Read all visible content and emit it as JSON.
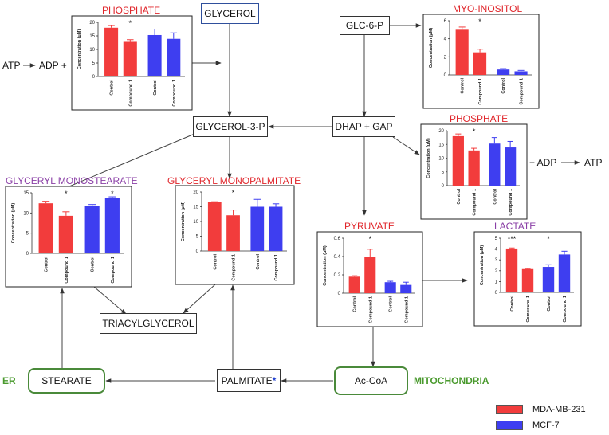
{
  "colors": {
    "red": "#f23c3c",
    "blue": "#3e3ef0",
    "green": "#4a9a2e",
    "purple": "#8a3fa6",
    "title_red": "#e0262b"
  },
  "nodes": {
    "glycerol": "GLYCEROL",
    "glc6p": "GLC-6-P",
    "glycerol3p": "GLYCEROL-3-P",
    "dhap": "DHAP + GAP",
    "triacylglycerol": "TRIACYLGLYCEROL",
    "stearate": "STEARATE",
    "palmitate": "PALMITATE",
    "palmitate_mark": "*",
    "acoa": "Ac-CoA"
  },
  "side_labels": {
    "atp_left": "ATP",
    "adp_left": "ADP +",
    "adp_right": "+ ADP",
    "atp_right": "ATP",
    "er": "ER",
    "mitochondria": "MITOCHONDRIA"
  },
  "legend": [
    {
      "label": "MDA-MB-231",
      "color": "#f23c3c"
    },
    {
      "label": "MCF-7",
      "color": "#3e3ef0"
    }
  ],
  "chart_data": [
    {
      "id": "phosphate_left",
      "title": "PHOSPHATE",
      "title_color": "#e0262b",
      "type": "bar",
      "ylabel": "Concentration (μM)",
      "ylim": [
        0,
        20
      ],
      "yticks": [
        0,
        5,
        10,
        15,
        20
      ],
      "categories": [
        "Control",
        "Compound 1",
        "Control",
        "Compound 1"
      ],
      "values": [
        18,
        12.8,
        15.3,
        13.9
      ],
      "errors": [
        0.8,
        0.8,
        2.2,
        2.2
      ],
      "significance": [
        "",
        "*",
        "",
        ""
      ]
    },
    {
      "id": "myo_inositol",
      "title": "MYO-INOSITOL",
      "title_color": "#e0262b",
      "type": "bar",
      "ylabel": "Concentration (μM)",
      "ylim": [
        0,
        6
      ],
      "yticks": [
        0,
        2,
        4,
        6
      ],
      "categories": [
        "Control",
        "Compound 1",
        "Control",
        "Compound 1"
      ],
      "values": [
        5.0,
        2.5,
        0.6,
        0.4
      ],
      "errors": [
        0.3,
        0.35,
        0.1,
        0.1
      ],
      "significance": [
        "",
        "*",
        "",
        ""
      ]
    },
    {
      "id": "phosphate_right",
      "title": "PHOSPHATE",
      "title_color": "#e0262b",
      "type": "bar",
      "ylabel": "Concentration (μM)",
      "ylim": [
        0,
        20
      ],
      "yticks": [
        0,
        5,
        10,
        15,
        20
      ],
      "categories": [
        "Control",
        "Compound 1",
        "Control",
        "Compound 1"
      ],
      "values": [
        18,
        12.8,
        15.3,
        13.9
      ],
      "errors": [
        0.8,
        0.8,
        2.2,
        2.2
      ],
      "significance": [
        "",
        "*",
        "",
        ""
      ]
    },
    {
      "id": "glyceryl_monostearate",
      "title": "GLYCERYL MONOSTEARATE",
      "title_color": "#8a3fa6",
      "type": "bar",
      "ylabel": "Concentration (μM)",
      "ylim": [
        0,
        15
      ],
      "yticks": [
        0,
        5,
        10,
        15
      ],
      "categories": [
        "Control",
        "Compound 1",
        "Control",
        "Compound 1"
      ],
      "values": [
        12.4,
        9.3,
        11.7,
        13.8
      ],
      "errors": [
        0.5,
        1.0,
        0.4,
        0.2
      ],
      "significance": [
        "",
        "*",
        "",
        "*"
      ]
    },
    {
      "id": "glyceryl_monopalmitate",
      "title": "GLYCERYL MONOPALMITATE",
      "title_color": "#e0262b",
      "type": "bar",
      "ylabel": "Concentration (μM)",
      "ylim": [
        0,
        20
      ],
      "yticks": [
        0,
        5,
        10,
        15,
        20
      ],
      "categories": [
        "Control",
        "Compound 1",
        "Control",
        "Compound 1"
      ],
      "values": [
        16.5,
        12.1,
        15.0,
        15.0
      ],
      "errors": [
        0.2,
        1.8,
        2.5,
        1.0
      ],
      "significance": [
        "",
        "*",
        "",
        ""
      ]
    },
    {
      "id": "pyruvate",
      "title": "PYRUVATE",
      "title_color": "#e0262b",
      "type": "bar",
      "ylabel": "Concentration (μM)",
      "ylim": [
        0,
        0.6
      ],
      "yticks": [
        0.0,
        0.2,
        0.4,
        0.6
      ],
      "categories": [
        "Control",
        "Compound 1",
        "Control",
        "Compound 1"
      ],
      "values": [
        0.18,
        0.4,
        0.12,
        0.09
      ],
      "errors": [
        0.01,
        0.08,
        0.01,
        0.03
      ],
      "significance": [
        "",
        "*",
        "",
        ""
      ]
    },
    {
      "id": "lactate",
      "title": "LACTATE",
      "title_color": "#8a3fa6",
      "type": "bar",
      "ylabel": "Concentration (μM)",
      "ylim": [
        0,
        5
      ],
      "yticks": [
        0,
        1,
        2,
        3,
        4,
        5
      ],
      "categories": [
        "Control",
        "Compound 1",
        "Control",
        "Compound 1"
      ],
      "values": [
        4.05,
        2.15,
        2.35,
        3.5
      ],
      "errors": [
        0.05,
        0.05,
        0.2,
        0.3
      ],
      "significance": [
        "***",
        "",
        "*",
        ""
      ]
    }
  ]
}
